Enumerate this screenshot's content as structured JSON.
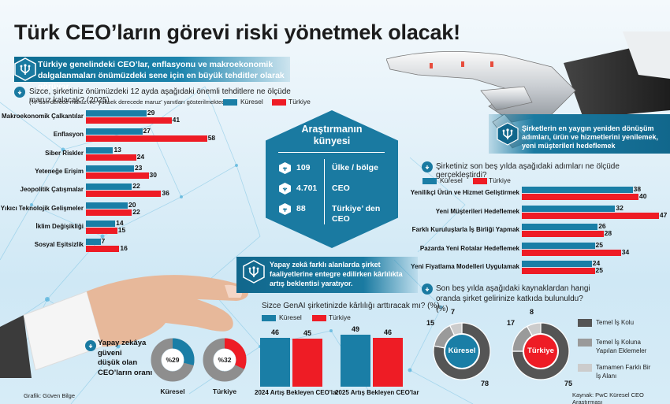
{
  "title": "Türk CEO’ların görevi riski yönetmek olacak!",
  "colors": {
    "kuresel": "#1a7ea6",
    "turkiye": "#ee1c25",
    "dark_gray": "#555555",
    "mid_gray": "#9a9a9a",
    "light_gray": "#cccccc",
    "brand_blue": "#1a7aa1"
  },
  "threats_section": {
    "banner": "Türkiye genelindeki CEO’lar, enflasyonu ve makroekonomik dalgalanmaları önümüzdeki sene için en büyük tehditler olarak görüyor.",
    "question": "Sizce, şirketiniz önümüzdeki 12 ayda aşağıdaki önemli tehditlere ne ölçüde maruz kalacak? (2025)",
    "note": "(% 'son derece maruz' ve 'yüksek derecede maruz' yanıtları gösterilmektedir.)",
    "legend": {
      "kuresel": "Küresel",
      "turkiye": "Türkiye"
    }
  },
  "survey_box": {
    "title_line1": "Araştırmanın",
    "title_line2": "künyesi",
    "rows": [
      {
        "value": "109",
        "label": "Ülke / bölge"
      },
      {
        "value": "4.701",
        "label": "CEO"
      },
      {
        "value": "88",
        "label": "Türkiye’ den CEO"
      }
    ]
  },
  "transformation_section": {
    "banner": "Şirketlerin en yaygın yeniden dönüşüm adımları, ürün ve hizmetlerini yenilemek, yeni müşterileri hedeflemek",
    "question": "Şirketiniz son beş yılda aşağıdaki adımları ne ölçüde gerçekleştirdi?",
    "legend": {
      "kuresel": "Küresel",
      "turkiye": "Türkiye"
    }
  },
  "ai_section": {
    "banner": "Yapay zekâ farklı alanlarda şirket faaliyetlerine entegre edilirken kârlılıkta artış beklentisi yaratıyor.",
    "question": "Sizce GenAI şirketinizde kârlılığı arttıracak mı? (%)",
    "legend": {
      "kuresel": "Küresel",
      "turkiye": "Türkiye"
    }
  },
  "trust_section": {
    "label_lines": [
      "Yapay zekâya",
      "güveni",
      "düşük olan",
      "CEO’ların oranı"
    ],
    "kuresel_value": "%29",
    "turkiye_value": "%32",
    "kuresel_label": "Küresel",
    "turkiye_label": "Türkiye"
  },
  "revenue_section": {
    "question": "Son beş yılda aşağıdaki kaynaklardan hangi oranda şirket gelirinize katkıda bulunuldu? (%)",
    "kuresel_center": "Küresel",
    "turkiye_center": "Türkiye",
    "legend": [
      "Temel İş Kolu",
      "Temel İş Koluna Yapılan Eklemeler",
      "Tamamen Farklı Bir İş Alanı"
    ]
  },
  "source": "Kaynak: PwC Küresel CEO Araştırması",
  "credit": "Grafik: Güven Bilge",
  "chart_data": [
    {
      "type": "bar",
      "orientation": "horizontal",
      "title": "Sizce, şirketiniz önümüzdeki 12 ayda aşağıdaki önemli tehditlere ne ölçüde maruz kalacak? (2025)",
      "categories": [
        "Makroekonomik Çalkantılar",
        "Enflasyon",
        "Siber Riskler",
        "Yeteneğe Erişim",
        "Jeopolitik Çatışmalar",
        "Yıkıcı Teknolojik Gelişmeler",
        "İklim Değişikliği",
        "Sosyal Eşitsizlik"
      ],
      "series": [
        {
          "name": "Küresel",
          "values": [
            29,
            27,
            13,
            23,
            22,
            20,
            14,
            7
          ]
        },
        {
          "name": "Türkiye",
          "values": [
            41,
            58,
            24,
            30,
            36,
            22,
            15,
            16
          ]
        }
      ],
      "xlabel": "",
      "ylabel": "%",
      "grid": false,
      "legend_position": "top"
    },
    {
      "type": "bar",
      "orientation": "horizontal",
      "title": "Şirketiniz son beş yılda aşağıdaki adımları ne ölçüde gerçekleştirdi?",
      "categories": [
        "Yenilikçi Ürün ve Hizmet Geliştirmek",
        "Yeni Müşterileri Hedeflemek",
        "Farklı Kuruluşlarla İş Birliği Yapmak",
        "Pazarda Yeni Rotalar Hedeflemek",
        "Yeni Fiyatlama Modelleri Uygulamak"
      ],
      "series": [
        {
          "name": "Küresel",
          "values": [
            38,
            32,
            26,
            25,
            24
          ]
        },
        {
          "name": "Türkiye",
          "values": [
            40,
            47,
            28,
            34,
            25
          ]
        }
      ],
      "grid": false,
      "legend_position": "top"
    },
    {
      "type": "bar",
      "orientation": "vertical",
      "title": "Sizce GenAI şirketinizde kârlılığı arttıracak mı? (%)",
      "categories": [
        "2024 Artış Bekleyen CEO'lar",
        "2025 Artış Bekleyen CEO'lar"
      ],
      "series": [
        {
          "name": "Küresel",
          "values": [
            46,
            49
          ]
        },
        {
          "name": "Türkiye",
          "values": [
            45,
            46
          ]
        }
      ],
      "grid": false,
      "legend_position": "top"
    },
    {
      "type": "pie",
      "style": "donut",
      "title": "Yapay zekâya güveni düşük olan CEO’ların oranı",
      "charts": [
        {
          "name": "Küresel",
          "value": 29,
          "label": "%29"
        },
        {
          "name": "Türkiye",
          "value": 32,
          "label": "%32"
        }
      ]
    },
    {
      "type": "pie",
      "style": "donut",
      "title": "Son beş yılda aşağıdaki kaynaklardan hangi oranda şirket gelirinize katkıda bulunuldu? (%)",
      "categories": [
        "Temel İş Kolu",
        "Temel İş Koluna Yapılan Eklemeler",
        "Tamamen Farklı Bir İş Alanı"
      ],
      "series": [
        {
          "name": "Küresel",
          "values": [
            78,
            15,
            7
          ]
        },
        {
          "name": "Türkiye",
          "values": [
            75,
            17,
            8
          ]
        }
      ]
    }
  ]
}
